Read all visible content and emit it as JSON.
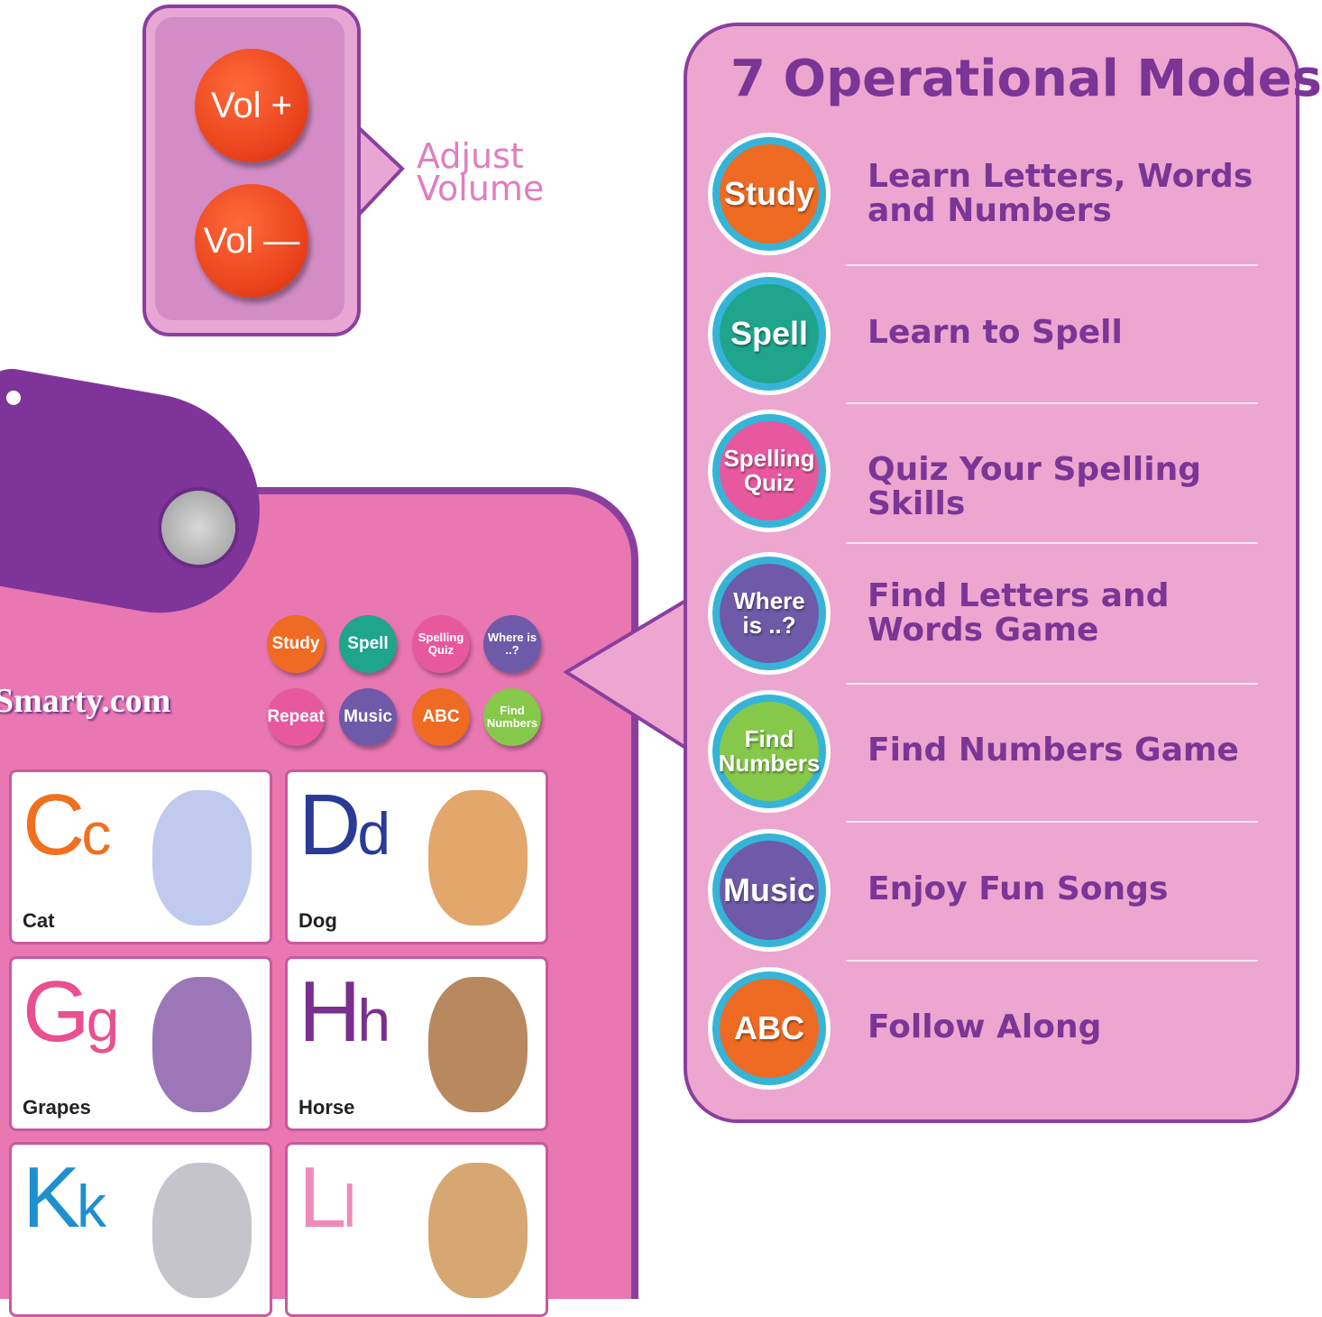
{
  "volume": {
    "plus": "Vol +",
    "minus": "Vol —",
    "caption_line1": "Adjust",
    "caption_line2": "Volume"
  },
  "modes_panel": {
    "title": "7 Operational Modes",
    "modes": [
      {
        "button": "Study",
        "description": "Learn Letters, Words and Numbers",
        "color": "#ef6a22"
      },
      {
        "button": "Spell",
        "description": "Learn to Spell",
        "color": "#1ea58c"
      },
      {
        "button": "Spelling Quiz",
        "description": "Quiz Your Spelling Skills",
        "color": "#e7589f"
      },
      {
        "button": "Where is ..?",
        "description": "Find Letters and Words Game",
        "color": "#6e5aa8"
      },
      {
        "button": "Find Numbers",
        "description": "Find Numbers Game",
        "color": "#86c84a"
      },
      {
        "button": "Music",
        "description": "Enjoy Fun Songs",
        "color": "#6e5aa8"
      },
      {
        "button": "ABC",
        "description": "Follow Along",
        "color": "#ef6a22"
      }
    ]
  },
  "board": {
    "brand": "Smarty.com",
    "buttons": [
      {
        "label": "Study",
        "color": "#ef6a22"
      },
      {
        "label": "Spell",
        "color": "#1ea58c"
      },
      {
        "label": "Spelling Quiz",
        "color": "#e7589f"
      },
      {
        "label": "Where is ..?",
        "color": "#6e5aa8"
      },
      {
        "label": "Repeat",
        "color": "#e7589f"
      },
      {
        "label": "Music",
        "color": "#6e5aa8"
      },
      {
        "label": "ABC",
        "color": "#ef6a22"
      },
      {
        "label": "Find Numbers",
        "color": "#86c84a"
      }
    ],
    "cards": [
      {
        "upper": "C",
        "lower": "c",
        "word": "Cat",
        "color": "#f07020"
      },
      {
        "upper": "D",
        "lower": "d",
        "word": "Dog",
        "color": "#2b3a96"
      },
      {
        "upper": "G",
        "lower": "g",
        "word": "Grapes",
        "color": "#e8508f"
      },
      {
        "upper": "H",
        "lower": "h",
        "word": "Horse",
        "color": "#7a2f8e"
      },
      {
        "upper": "K",
        "lower": "k",
        "word": "",
        "color": "#1f8fd0"
      },
      {
        "upper": "L",
        "lower": "l",
        "word": "",
        "color": "#f08ab8"
      }
    ]
  }
}
